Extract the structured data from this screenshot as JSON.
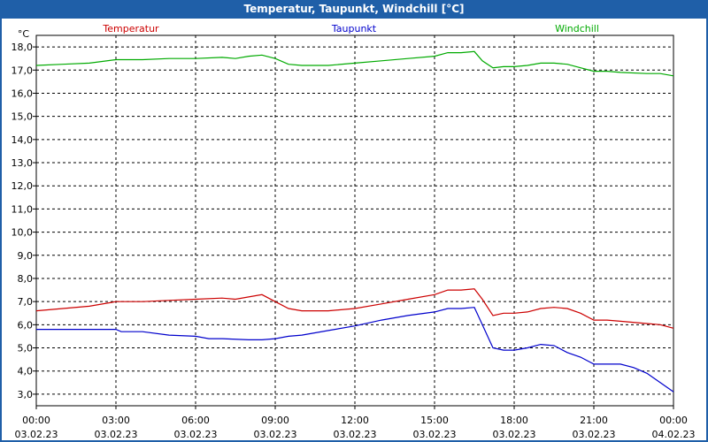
{
  "window": {
    "title": "Temperatur, Taupunkt, Windchill [°C]"
  },
  "chart_data": {
    "type": "line",
    "title": "Temperatur, Taupunkt, Windchill [°C]",
    "ylabel": "°C",
    "xlabel": "",
    "ylim": [
      2.5,
      18.5
    ],
    "xlim": [
      0,
      24
    ],
    "grid": true,
    "legend": "top",
    "y_ticks": [
      "3,0",
      "4,0",
      "5,0",
      "6,0",
      "7,0",
      "8,0",
      "9,0",
      "10,0",
      "11,0",
      "12,0",
      "13,0",
      "14,0",
      "15,0",
      "16,0",
      "17,0",
      "18,0"
    ],
    "y_tick_values": [
      3,
      4,
      5,
      6,
      7,
      8,
      9,
      10,
      11,
      12,
      13,
      14,
      15,
      16,
      17,
      18
    ],
    "x_ticks": [
      {
        "time": "00:00",
        "date": "03.02.23",
        "x": 0
      },
      {
        "time": "03:00",
        "date": "03.02.23",
        "x": 3
      },
      {
        "time": "06:00",
        "date": "03.02.23",
        "x": 6
      },
      {
        "time": "09:00",
        "date": "03.02.23",
        "x": 9
      },
      {
        "time": "12:00",
        "date": "03.02.23",
        "x": 12
      },
      {
        "time": "15:00",
        "date": "03.02.23",
        "x": 15
      },
      {
        "time": "18:00",
        "date": "03.02.23",
        "x": 18
      },
      {
        "time": "21:00",
        "date": "03.02.23",
        "x": 21
      },
      {
        "time": "00:00",
        "date": "04.02.23",
        "x": 24
      }
    ],
    "series": [
      {
        "name": "Temperatur",
        "color": "#cc0000",
        "points": [
          [
            0,
            6.6
          ],
          [
            1,
            6.7
          ],
          [
            2,
            6.8
          ],
          [
            3,
            7.0
          ],
          [
            4,
            7.0
          ],
          [
            5,
            7.05
          ],
          [
            6,
            7.1
          ],
          [
            7,
            7.15
          ],
          [
            7.5,
            7.1
          ],
          [
            8,
            7.2
          ],
          [
            8.5,
            7.3
          ],
          [
            9,
            7.0
          ],
          [
            9.5,
            6.7
          ],
          [
            10,
            6.6
          ],
          [
            11,
            6.6
          ],
          [
            12,
            6.7
          ],
          [
            13,
            6.9
          ],
          [
            14,
            7.1
          ],
          [
            15,
            7.3
          ],
          [
            15.5,
            7.5
          ],
          [
            16,
            7.5
          ],
          [
            16.5,
            7.55
          ],
          [
            16.8,
            7.1
          ],
          [
            17.2,
            6.4
          ],
          [
            17.6,
            6.5
          ],
          [
            18,
            6.5
          ],
          [
            18.5,
            6.55
          ],
          [
            19,
            6.7
          ],
          [
            19.5,
            6.75
          ],
          [
            20,
            6.7
          ],
          [
            20.5,
            6.5
          ],
          [
            21,
            6.2
          ],
          [
            21.5,
            6.2
          ],
          [
            22,
            6.15
          ],
          [
            23,
            6.05
          ],
          [
            23.5,
            6.0
          ],
          [
            24,
            5.85
          ]
        ]
      },
      {
        "name": "Taupunkt",
        "color": "#0000cc",
        "points": [
          [
            0,
            5.8
          ],
          [
            2,
            5.8
          ],
          [
            3,
            5.8
          ],
          [
            3.2,
            5.7
          ],
          [
            4,
            5.7
          ],
          [
            5,
            5.55
          ],
          [
            6,
            5.5
          ],
          [
            6.5,
            5.4
          ],
          [
            7,
            5.4
          ],
          [
            8,
            5.35
          ],
          [
            8.5,
            5.35
          ],
          [
            9,
            5.4
          ],
          [
            9.5,
            5.5
          ],
          [
            10,
            5.55
          ],
          [
            11,
            5.75
          ],
          [
            12,
            5.95
          ],
          [
            13,
            6.2
          ],
          [
            14,
            6.4
          ],
          [
            15,
            6.55
          ],
          [
            15.5,
            6.7
          ],
          [
            16,
            6.7
          ],
          [
            16.5,
            6.75
          ],
          [
            16.8,
            6.0
          ],
          [
            17.2,
            5.0
          ],
          [
            17.6,
            4.9
          ],
          [
            18,
            4.9
          ],
          [
            18.5,
            5.0
          ],
          [
            19,
            5.15
          ],
          [
            19.5,
            5.1
          ],
          [
            20,
            4.8
          ],
          [
            20.5,
            4.6
          ],
          [
            21,
            4.3
          ],
          [
            21.5,
            4.3
          ],
          [
            22,
            4.3
          ],
          [
            22.5,
            4.15
          ],
          [
            23,
            3.9
          ],
          [
            23.5,
            3.5
          ],
          [
            24,
            3.1
          ]
        ]
      },
      {
        "name": "Windchill",
        "color": "#00aa00",
        "points": [
          [
            0,
            17.2
          ],
          [
            1,
            17.25
          ],
          [
            2,
            17.3
          ],
          [
            3,
            17.45
          ],
          [
            4,
            17.45
          ],
          [
            5,
            17.5
          ],
          [
            6,
            17.5
          ],
          [
            7,
            17.55
          ],
          [
            7.5,
            17.5
          ],
          [
            8,
            17.6
          ],
          [
            8.5,
            17.65
          ],
          [
            9,
            17.5
          ],
          [
            9.5,
            17.25
          ],
          [
            10,
            17.2
          ],
          [
            11,
            17.2
          ],
          [
            12,
            17.3
          ],
          [
            13,
            17.4
          ],
          [
            14,
            17.5
          ],
          [
            15,
            17.6
          ],
          [
            15.5,
            17.75
          ],
          [
            16,
            17.75
          ],
          [
            16.5,
            17.8
          ],
          [
            16.8,
            17.4
          ],
          [
            17.2,
            17.1
          ],
          [
            17.6,
            17.15
          ],
          [
            18,
            17.15
          ],
          [
            18.5,
            17.2
          ],
          [
            19,
            17.3
          ],
          [
            19.5,
            17.3
          ],
          [
            20,
            17.25
          ],
          [
            20.5,
            17.1
          ],
          [
            21,
            16.95
          ],
          [
            21.5,
            16.95
          ],
          [
            22,
            16.9
          ],
          [
            23,
            16.85
          ],
          [
            23.5,
            16.85
          ],
          [
            24,
            16.75
          ]
        ]
      }
    ]
  }
}
